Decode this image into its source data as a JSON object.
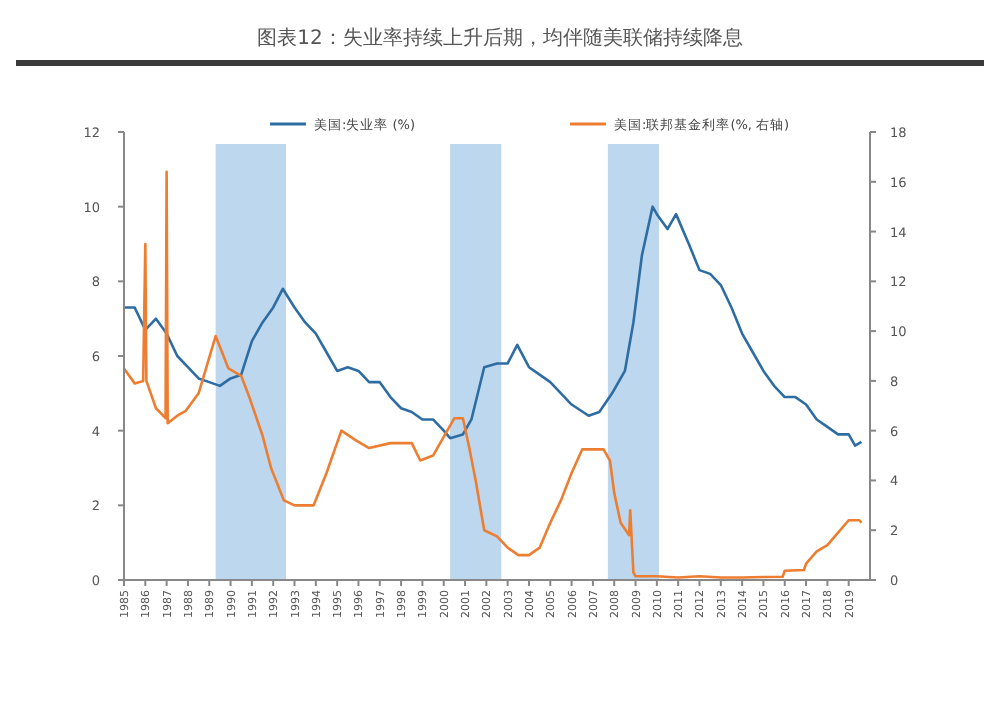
{
  "chart_data": {
    "type": "line",
    "title": "图表12：失业率持续上升后期，均伴随美联储持续降息",
    "xlim": [
      1985,
      2020
    ],
    "xticks": [
      1985,
      1986,
      1987,
      1988,
      1989,
      1990,
      1991,
      1992,
      1993,
      1994,
      1995,
      1996,
      1997,
      1998,
      1999,
      2000,
      2001,
      2002,
      2003,
      2004,
      2005,
      2006,
      2007,
      2008,
      2009,
      2010,
      2011,
      2012,
      2013,
      2014,
      2015,
      2016,
      2017,
      2018,
      2019
    ],
    "ylim": [
      0,
      12
    ],
    "yticks": [
      0,
      2,
      4,
      6,
      8,
      10,
      12
    ],
    "y2lim": [
      0,
      18
    ],
    "y2ticks": [
      0,
      2,
      4,
      6,
      8,
      10,
      12,
      14,
      16,
      18
    ],
    "legend": "top",
    "bands": [
      {
        "axis": "x",
        "from": 1989.3,
        "to": 1992.6,
        "color": "#bdd7ee"
      },
      {
        "axis": "x",
        "from": 2000.3,
        "to": 2002.7,
        "color": "#bdd7ee"
      },
      {
        "axis": "x",
        "from": 2007.7,
        "to": 2010.1,
        "color": "#bdd7ee"
      }
    ],
    "series": [
      {
        "name": "美国:失业率 (%)",
        "color": "#2e6da4",
        "x": [
          1985.0,
          1985.5,
          1986.0,
          1986.5,
          1987.0,
          1987.5,
          1988.0,
          1988.5,
          1989.0,
          1989.5,
          1990.0,
          1990.5,
          1991.0,
          1991.5,
          1992.0,
          1992.45,
          1993.0,
          1993.5,
          1994.0,
          1994.5,
          1995.0,
          1995.5,
          1996.0,
          1996.5,
          1997.0,
          1997.5,
          1998.0,
          1998.5,
          1999.0,
          1999.5,
          2000.0,
          2000.3,
          2000.9,
          2001.3,
          2001.9,
          2002.5,
          2003.0,
          2003.45,
          2004.0,
          2004.5,
          2005.0,
          2005.5,
          2006.0,
          2006.8,
          2007.3,
          2007.9,
          2008.5,
          2008.9,
          2009.3,
          2009.8,
          2010.0,
          2010.5,
          2010.9,
          2011.5,
          2012.0,
          2012.5,
          2013.0,
          2013.5,
          2014.0,
          2014.5,
          2015.0,
          2015.5,
          2016.0,
          2016.5,
          2017.0,
          2017.5,
          2018.0,
          2018.5,
          2019.0,
          2019.3,
          2019.6
        ],
        "values": [
          7.3,
          7.3,
          6.7,
          7.0,
          6.6,
          6.0,
          5.7,
          5.4,
          5.3,
          5.2,
          5.4,
          5.5,
          6.4,
          6.9,
          7.3,
          7.8,
          7.3,
          6.9,
          6.6,
          6.1,
          5.6,
          5.7,
          5.6,
          5.3,
          5.3,
          4.9,
          4.6,
          4.5,
          4.3,
          4.3,
          4.0,
          3.8,
          3.9,
          4.3,
          5.7,
          5.8,
          5.8,
          6.3,
          5.7,
          5.5,
          5.3,
          5.0,
          4.7,
          4.4,
          4.5,
          5.0,
          5.6,
          6.9,
          8.7,
          10.0,
          9.8,
          9.4,
          9.8,
          9.0,
          8.3,
          8.2,
          7.9,
          7.3,
          6.6,
          6.1,
          5.6,
          5.2,
          4.9,
          4.9,
          4.7,
          4.3,
          4.1,
          3.9,
          3.9,
          3.6,
          3.7
        ]
      },
      {
        "name": "美国:联邦基金利率(%, 右轴)",
        "color": "#ed7d31",
        "axis": "y2",
        "x": [
          1985.0,
          1985.5,
          1985.9,
          1986.0,
          1986.05,
          1986.5,
          1986.95,
          1987.0,
          1987.05,
          1987.5,
          1987.9,
          1988.5,
          1989.3,
          1989.9,
          1990.5,
          1990.9,
          1991.5,
          1991.9,
          1992.5,
          1993.0,
          1993.9,
          1994.5,
          1995.2,
          1995.9,
          1996.5,
          1997.5,
          1998.5,
          1998.9,
          1999.5,
          2000.5,
          2000.9,
          2001.2,
          2001.5,
          2001.9,
          2002.5,
          2003.0,
          2003.5,
          2004.0,
          2004.5,
          2005.0,
          2005.5,
          2006.0,
          2006.5,
          2007.5,
          2007.8,
          2008.0,
          2008.3,
          2008.7,
          2008.75,
          2008.9,
          2009.0,
          2010.0,
          2011.0,
          2012.0,
          2013.0,
          2014.0,
          2015.0,
          2015.9,
          2016.0,
          2016.9,
          2017.0,
          2017.5,
          2018.0,
          2018.5,
          2019.0,
          2019.5,
          2019.6
        ],
        "values": [
          8.5,
          7.9,
          8.0,
          13.5,
          8.0,
          6.9,
          6.5,
          16.4,
          6.3,
          6.6,
          6.8,
          7.5,
          9.8,
          8.5,
          8.2,
          7.3,
          5.8,
          4.5,
          3.2,
          3.0,
          3.0,
          4.3,
          6.0,
          5.6,
          5.3,
          5.5,
          5.5,
          4.8,
          5.0,
          6.5,
          6.5,
          5.3,
          4.0,
          2.0,
          1.75,
          1.3,
          1.0,
          1.0,
          1.3,
          2.3,
          3.2,
          4.3,
          5.25,
          5.25,
          4.8,
          3.5,
          2.3,
          1.8,
          2.8,
          0.3,
          0.15,
          0.15,
          0.1,
          0.15,
          0.1,
          0.1,
          0.12,
          0.13,
          0.37,
          0.4,
          0.66,
          1.15,
          1.4,
          1.9,
          2.4,
          2.4,
          2.3
        ]
      }
    ]
  }
}
